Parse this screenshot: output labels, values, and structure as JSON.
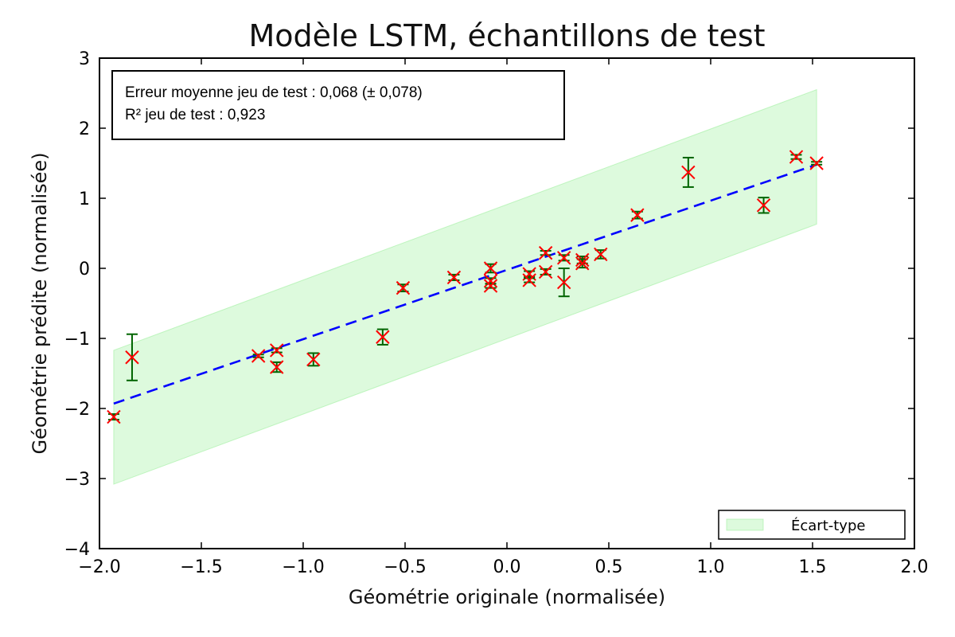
{
  "chart_data": {
    "type": "scatter",
    "title": "Modèle LSTM, échantillons de test",
    "xlabel": "Géométrie originale (normalisée)",
    "ylabel": "Géométrie prédite (normalisée)",
    "xlim": [
      -2.0,
      2.0
    ],
    "ylim": [
      -4,
      3
    ],
    "xticks": [
      -2.0,
      -1.5,
      -1.0,
      -0.5,
      0.0,
      0.5,
      1.0,
      1.5,
      2.0
    ],
    "xtick_labels": [
      "−2.0",
      "−1.5",
      "−1.0",
      "−0.5",
      "0.0",
      "0.5",
      "1.0",
      "1.5",
      "2.0"
    ],
    "yticks": [
      -4,
      -3,
      -2,
      -1,
      0,
      1,
      2,
      3
    ],
    "ytick_labels": [
      "−4",
      "−3",
      "−2",
      "−1",
      "0",
      "1",
      "2",
      "3"
    ],
    "grid": false,
    "annotation": [
      "Erreur moyenne jeu de test : 0,068 (± 0,078)",
      "R² jeu de test : 0,923"
    ],
    "legend": {
      "placement": "bottom-right",
      "entries": [
        "Écart-type"
      ]
    },
    "colors": {
      "points": "#ff0000",
      "errorbars": "#006400",
      "fit_line": "#0000ff",
      "band": "#90ee90"
    },
    "fit_line": {
      "x": [
        -1.93,
        1.52
      ],
      "y": [
        -1.93,
        1.48
      ]
    },
    "band": {
      "x": [
        -1.93,
        1.52
      ],
      "upper": [
        -1.17,
        2.55
      ],
      "lower": [
        -3.08,
        0.63
      ]
    },
    "points": [
      {
        "x": -1.93,
        "y": -2.12,
        "err": 0.04
      },
      {
        "x": -1.84,
        "y": -1.27,
        "err": 0.33
      },
      {
        "x": -1.22,
        "y": -1.25,
        "err": 0.02
      },
      {
        "x": -1.13,
        "y": -1.17,
        "err": 0.03
      },
      {
        "x": -1.13,
        "y": -1.41,
        "err": 0.07
      },
      {
        "x": -0.95,
        "y": -1.3,
        "err": 0.09
      },
      {
        "x": -0.61,
        "y": -0.98,
        "err": 0.11
      },
      {
        "x": -0.51,
        "y": -0.28,
        "err": 0.05
      },
      {
        "x": -0.26,
        "y": -0.13,
        "err": 0.04
      },
      {
        "x": -0.08,
        "y": 0.0,
        "err": 0.06
      },
      {
        "x": -0.08,
        "y": -0.18,
        "err": 0.04
      },
      {
        "x": -0.08,
        "y": -0.25,
        "err": 0.03
      },
      {
        "x": 0.11,
        "y": -0.08,
        "err": 0.04
      },
      {
        "x": 0.11,
        "y": -0.17,
        "err": 0.03
      },
      {
        "x": 0.19,
        "y": 0.22,
        "err": 0.03
      },
      {
        "x": 0.19,
        "y": -0.05,
        "err": 0.04
      },
      {
        "x": 0.28,
        "y": 0.15,
        "err": 0.04
      },
      {
        "x": 0.28,
        "y": -0.2,
        "err": 0.2
      },
      {
        "x": 0.37,
        "y": 0.12,
        "err": 0.05
      },
      {
        "x": 0.37,
        "y": 0.07,
        "err": 0.06
      },
      {
        "x": 0.46,
        "y": 0.2,
        "err": 0.06
      },
      {
        "x": 0.64,
        "y": 0.76,
        "err": 0.05
      },
      {
        "x": 0.89,
        "y": 1.37,
        "err": 0.21
      },
      {
        "x": 1.26,
        "y": 0.9,
        "err": 0.11
      },
      {
        "x": 1.42,
        "y": 1.59,
        "err": 0.03
      },
      {
        "x": 1.52,
        "y": 1.5,
        "err": 0.02
      }
    ]
  }
}
